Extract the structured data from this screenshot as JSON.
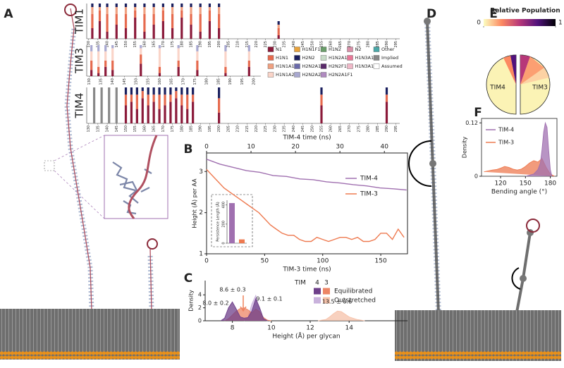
{
  "panel_labels": [
    "A",
    "B",
    "C",
    "D",
    "E",
    "F"
  ],
  "glycan_legend": [
    [
      {
        "name": "N1",
        "color": "#8b1a3a"
      },
      {
        "name": "H1N1",
        "color": "#e66a4e"
      },
      {
        "name": "H1N1A1",
        "color": "#f0a080"
      },
      {
        "name": "H1N1A2",
        "color": "#fad4c8"
      }
    ],
    [
      {
        "name": "H1N1F1",
        "color": "#e8a33d"
      },
      {
        "name": "H2N2",
        "color": "#1a1f5e"
      },
      {
        "name": "H2N2A1",
        "color": "#6a6aaa"
      },
      {
        "name": "H2N2A2",
        "color": "#a8a8d0"
      }
    ],
    [
      {
        "name": "H1N2",
        "color": "#6b9e6b"
      },
      {
        "name": "H1N2A1",
        "color": "#c8dcc8"
      },
      {
        "name": "H2N2F1",
        "color": "#5a2a6a"
      },
      {
        "name": "H2N2A1F1",
        "color": "#b08ac0"
      }
    ],
    [
      {
        "name": "N2",
        "color": "#d890a8"
      },
      {
        "name": "H1N3A1",
        "color": "#e87898"
      },
      {
        "name": "H1N3A1F1",
        "color": "#f0b8c8"
      }
    ],
    [
      {
        "name": "Other",
        "color": "#4aa8a8"
      },
      {
        "name": "Implied",
        "color": "#888888"
      },
      {
        "name": "Assumed",
        "color": "#ffffff"
      }
    ]
  ],
  "panel_e": {
    "title": "Relative Population",
    "ticks": [
      0,
      1
    ],
    "shapes": [
      "TIM4",
      "TIM3"
    ]
  },
  "chart_data": [
    {
      "type": "stacked_bar",
      "label": "TIM1",
      "xlim": [
        129,
        297
      ],
      "ylim": [
        0,
        1
      ],
      "xticks": [
        130,
        135,
        140,
        145,
        150,
        155,
        160,
        165,
        170,
        175,
        180,
        185,
        190,
        195,
        200,
        205,
        210,
        215,
        220,
        225,
        230,
        235,
        240,
        245,
        250,
        255,
        260,
        265,
        270,
        275,
        280,
        285,
        290,
        295
      ],
      "x": [
        132,
        136,
        140,
        145,
        150,
        155,
        160,
        165,
        170,
        175,
        180,
        185,
        190,
        195,
        200,
        232
      ],
      "series": [
        {
          "color": "#8b1a3a",
          "values": [
            0.3,
            0.5,
            0.2,
            0.4,
            0.3,
            0.6,
            0.2,
            0.4,
            0.5,
            0.3,
            0.6,
            0.4,
            0.2,
            0.5,
            0.3,
            0.1
          ]
        },
        {
          "color": "#e66a4e",
          "values": [
            0.4,
            0.3,
            0.5,
            0.3,
            0.4,
            0.2,
            0.5,
            0.3,
            0.3,
            0.4,
            0.2,
            0.3,
            0.5,
            0.3,
            0.4,
            0.2
          ]
        },
        {
          "color": "#f0a080",
          "values": [
            0.2,
            0.1,
            0.2,
            0.2,
            0.2,
            0.1,
            0.2,
            0.2,
            0.1,
            0.2,
            0.1,
            0.2,
            0.2,
            0.1,
            0.2,
            0.1
          ]
        },
        {
          "color": "#1a1f5e",
          "values": [
            0.1,
            0.1,
            0.1,
            0.1,
            0.1,
            0.1,
            0.1,
            0.1,
            0.1,
            0.1,
            0.1,
            0.1,
            0.1,
            0.1,
            0.1,
            0.1
          ]
        }
      ]
    },
    {
      "type": "stacked_bar",
      "label": "TIM3",
      "xlim": [
        129,
        203
      ],
      "ylim": [
        0,
        1
      ],
      "xticks": [
        130,
        135,
        140,
        145,
        150,
        155,
        160,
        165,
        170,
        175,
        180,
        185,
        190,
        195,
        200
      ],
      "x": [
        131,
        134,
        137,
        140,
        152,
        160,
        168,
        176,
        188,
        198
      ],
      "series": [
        {
          "color": "#8b1a3a",
          "values": [
            0.2,
            0.1,
            0.3,
            0.2,
            0.4,
            0.1,
            0.3,
            0.2,
            0.1,
            0.3
          ]
        },
        {
          "color": "#e66a4e",
          "values": [
            0.3,
            0.2,
            0.2,
            0.3,
            0.3,
            0.2,
            0.2,
            0.3,
            0.2,
            0.2
          ]
        },
        {
          "color": "#fad4c8",
          "values": [
            0.3,
            0.5,
            0.3,
            0.4,
            0.2,
            0.6,
            0.4,
            0.3,
            0.5,
            0.3
          ]
        },
        {
          "color": "#a8a8d0",
          "values": [
            0.2,
            0.2,
            0.2,
            0.1,
            0.1,
            0.1,
            0.1,
            0.2,
            0.2,
            0.2
          ]
        }
      ]
    },
    {
      "type": "stacked_bar",
      "label": "TIM4",
      "xlim": [
        129,
        297
      ],
      "ylim": [
        0,
        1
      ],
      "xticks": [
        130,
        135,
        140,
        145,
        150,
        155,
        160,
        165,
        170,
        175,
        180,
        185,
        190,
        195,
        200,
        205,
        210,
        215,
        220,
        225,
        230,
        235,
        240,
        245,
        250,
        255,
        260,
        265,
        270,
        275,
        280,
        285,
        290,
        295
      ],
      "x": [
        133,
        137,
        141,
        145,
        150,
        153,
        156,
        159,
        162,
        165,
        168,
        171,
        174,
        177,
        180,
        183,
        186,
        200,
        255,
        290
      ],
      "series": [
        {
          "color": "#888888",
          "values": [
            1,
            1,
            1,
            1,
            0,
            0,
            0,
            0,
            0,
            0,
            0,
            0,
            0,
            0,
            0,
            0,
            0,
            0,
            0,
            0
          ]
        },
        {
          "color": "#8b1a3a",
          "values": [
            0,
            0,
            0,
            0,
            0.5,
            0.6,
            0.4,
            0.7,
            0.5,
            0.6,
            0.4,
            0.5,
            0.6,
            0.7,
            0.5,
            0.4,
            0.6,
            0.3,
            0.5,
            0.6
          ]
        },
        {
          "color": "#e66a4e",
          "values": [
            0,
            0,
            0,
            0,
            0.3,
            0.2,
            0.4,
            0.2,
            0.3,
            0.2,
            0.4,
            0.3,
            0.2,
            0.2,
            0.3,
            0.4,
            0.2,
            0.4,
            0.3,
            0.2
          ]
        },
        {
          "color": "#1a1f5e",
          "values": [
            0,
            0,
            0,
            0,
            0.2,
            0.2,
            0.2,
            0.1,
            0.2,
            0.2,
            0.2,
            0.2,
            0.2,
            0.1,
            0.2,
            0.2,
            0.2,
            0.3,
            0.2,
            0.2
          ]
        }
      ]
    },
    {
      "type": "line",
      "xlabel": "TIM-3 time (ns)",
      "x2label": "TIM-4 time (ns)",
      "ylabel": "Height (Å) per AA",
      "xlim": [
        0,
        173
      ],
      "xticks": [
        0,
        50,
        100,
        150
      ],
      "x2lim": [
        0,
        45.2
      ],
      "x2ticks": [
        0,
        10,
        20,
        30,
        40
      ],
      "ylim": [
        1,
        3.45
      ],
      "yticks": [
        1,
        2,
        3
      ],
      "legend": "upper right",
      "series": [
        {
          "name": "TIM-4",
          "color": "#a070b0",
          "axis": "x2",
          "x": [
            0,
            3,
            6,
            9,
            12,
            15,
            18,
            21,
            24,
            27,
            30,
            33,
            36,
            39,
            42,
            45
          ],
          "values": [
            3.3,
            3.18,
            3.1,
            3.02,
            2.98,
            2.9,
            2.88,
            2.82,
            2.8,
            2.75,
            2.72,
            2.68,
            2.65,
            2.6,
            2.58,
            2.55
          ]
        },
        {
          "name": "TIM-3",
          "color": "#ee7a50",
          "x": [
            0,
            5,
            10,
            15,
            20,
            25,
            30,
            35,
            40,
            45,
            50,
            55,
            60,
            65,
            70,
            75,
            80,
            85,
            90,
            95,
            100,
            105,
            110,
            115,
            120,
            125,
            130,
            135,
            140,
            145,
            150,
            155,
            160,
            165,
            170
          ],
          "values": [
            3.05,
            2.9,
            2.75,
            2.6,
            2.5,
            2.4,
            2.3,
            2.2,
            2.1,
            2.0,
            1.85,
            1.7,
            1.6,
            1.5,
            1.45,
            1.45,
            1.35,
            1.3,
            1.3,
            1.4,
            1.35,
            1.3,
            1.35,
            1.4,
            1.4,
            1.35,
            1.4,
            1.3,
            1.3,
            1.35,
            1.5,
            1.5,
            1.35,
            1.6,
            1.4
          ]
        }
      ]
    },
    {
      "type": "bar",
      "ylabel": "Persistence Length (Å)",
      "categories": [
        null,
        null
      ],
      "values": [
        420,
        40
      ],
      "colors": [
        "#a070b0",
        "#ee7a50"
      ],
      "ylim": [
        0,
        450
      ],
      "yticks": [
        0,
        200,
        400
      ]
    },
    {
      "type": "density",
      "xlabel": "Height (Å) per glycan",
      "ylabel": "Density",
      "xlim": [
        6.6,
        17
      ],
      "xticks": [
        8,
        10,
        12,
        14
      ],
      "ylim": [
        0,
        6.2
      ],
      "yticks": [
        0,
        2,
        4
      ],
      "legend_title": "TIM",
      "legend_columns": [
        "4",
        "3"
      ],
      "legend_rows": [
        "Equilibrated",
        "Outstretched"
      ],
      "annotations": [
        "8.0 ± 0.2",
        "8.6 ± 0.3",
        "9.1 ± 0.1",
        "13.5 ± 0.6"
      ],
      "series": [
        {
          "color": "#6e3f8a",
          "x": [
            7.4,
            7.6,
            7.8,
            8.0,
            8.2,
            8.4,
            8.6,
            8.8,
            9.0,
            9.2,
            9.4,
            9.6,
            9.8
          ],
          "values": [
            0,
            0.4,
            2.0,
            2.9,
            1.8,
            0.6,
            0.4,
            0.5,
            1.5,
            3.4,
            2.0,
            0.3,
            0
          ]
        },
        {
          "color": "#ec8565",
          "x": [
            7.6,
            7.8,
            8.0,
            8.2,
            8.4,
            8.6,
            8.8,
            9.0,
            9.2,
            9.4,
            9.6,
            9.8,
            10.0
          ],
          "values": [
            0,
            0.3,
            0.9,
            1.5,
            1.9,
            2.0,
            1.7,
            1.2,
            1.8,
            1.4,
            0.5,
            0.1,
            0
          ]
        },
        {
          "color": "#c9b2dc",
          "x": [
            8.6,
            8.8,
            9.0,
            9.2,
            9.4,
            9.6,
            9.8
          ],
          "values": [
            0,
            0.5,
            2.6,
            3.9,
            1.5,
            0.2,
            0
          ]
        },
        {
          "color": "#f6c2aa",
          "x": [
            12.4,
            12.8,
            13.0,
            13.2,
            13.4,
            13.6,
            13.8,
            14.0,
            14.4,
            14.8
          ],
          "values": [
            0,
            0.2,
            0.6,
            1.1,
            1.5,
            1.4,
            1.0,
            0.6,
            0.2,
            0
          ]
        }
      ]
    },
    {
      "type": "density",
      "xlabel": "Bending angle (°)",
      "ylabel": "Density",
      "legend": "upper left",
      "xlim": [
        97,
        188
      ],
      "xticks": [
        120,
        150,
        180
      ],
      "ylim": [
        0,
        0.13
      ],
      "yticks": [
        0,
        0.12
      ],
      "series": [
        {
          "name": "TIM-4",
          "color": "#a070b0",
          "x": [
            150,
            160,
            165,
            168,
            170,
            172,
            174,
            176,
            178,
            180,
            182
          ],
          "values": [
            0,
            0.005,
            0.015,
            0.03,
            0.06,
            0.1,
            0.12,
            0.11,
            0.06,
            0.015,
            0
          ]
        },
        {
          "name": "TIM-3",
          "color": "#ee7a50",
          "x": [
            100,
            105,
            110,
            115,
            120,
            125,
            130,
            135,
            140,
            145,
            150,
            155,
            160,
            165,
            170,
            175,
            180,
            185
          ],
          "values": [
            0.01,
            0.012,
            0.014,
            0.015,
            0.018,
            0.022,
            0.02,
            0.016,
            0.014,
            0.016,
            0.022,
            0.03,
            0.035,
            0.032,
            0.04,
            0.02,
            0.005,
            0
          ]
        }
      ]
    }
  ]
}
